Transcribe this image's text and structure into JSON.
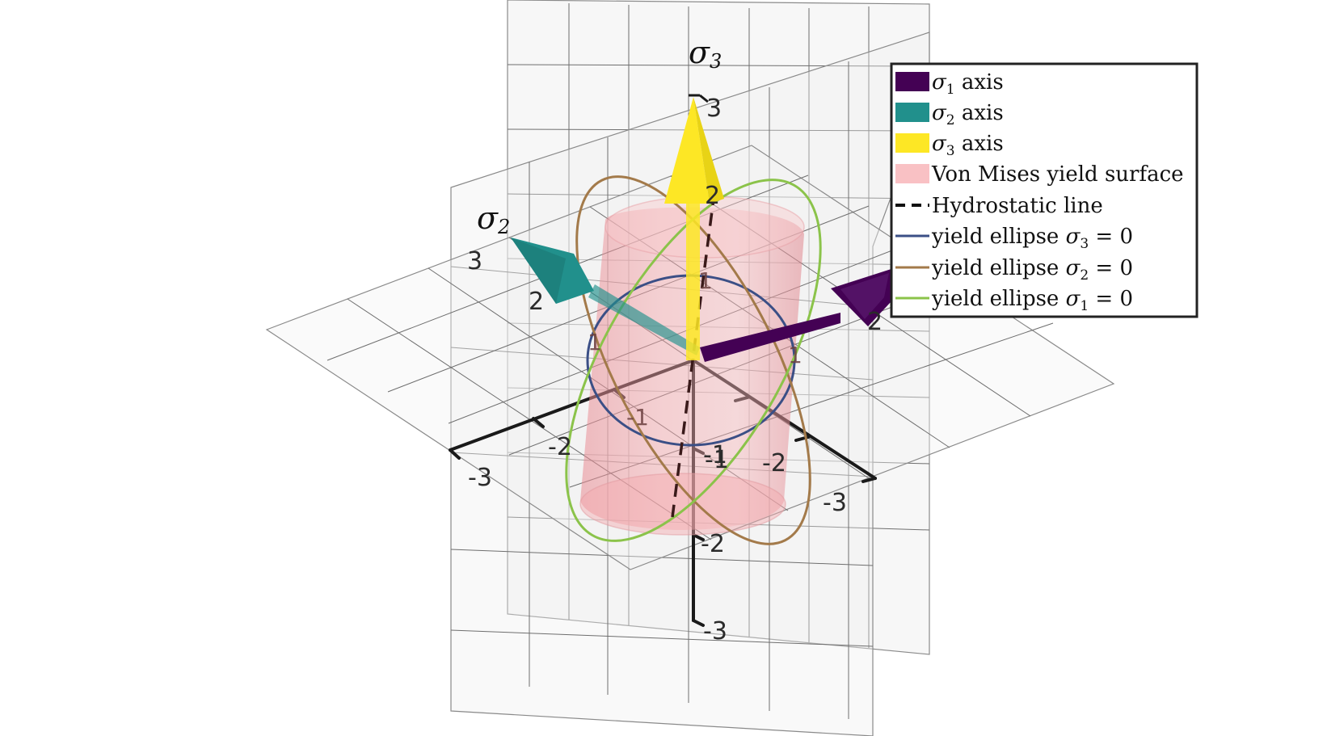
{
  "figure": {
    "axes": [
      {
        "name": "σ",
        "subscript": "1",
        "color": "#440154",
        "ticks": [
          "-3",
          "-2",
          "-1",
          "1",
          "2"
        ]
      },
      {
        "name": "σ",
        "subscript": "2",
        "color": "#21908c",
        "ticks": [
          "-3",
          "-2",
          "-1",
          "1",
          "2",
          "3"
        ]
      },
      {
        "name": "σ",
        "subscript": "3",
        "color": "#fde725",
        "ticks": [
          "-3",
          "-2",
          "-1",
          "1",
          "2",
          "3"
        ]
      }
    ],
    "colors": {
      "sigma1_axis": "#440154",
      "sigma2_axis": "#21908c",
      "sigma3_axis": "#fde725",
      "yield_surface": "#f4a3a8",
      "hydrostatic": "#111111",
      "ellipse_s3": "#3b4f86",
      "ellipse_s2": "#a37a4a",
      "ellipse_s1": "#8bc34a"
    },
    "legend": {
      "placement": "top-right",
      "entries": [
        {
          "kind": "patch",
          "color": "#440154",
          "math": "σ",
          "sub": "1",
          "text": " axis"
        },
        {
          "kind": "patch",
          "color": "#21908c",
          "math": "σ",
          "sub": "2",
          "text": " axis"
        },
        {
          "kind": "patch",
          "color": "#fde725",
          "math": "σ",
          "sub": "3",
          "text": " axis"
        },
        {
          "kind": "patch",
          "color": "#f9c1c4",
          "math": "",
          "sub": "",
          "text": "Von Mises yield surface"
        },
        {
          "kind": "dash",
          "color": "#111111",
          "math": "",
          "sub": "",
          "text": "Hydrostatic line"
        },
        {
          "kind": "line",
          "color": "#3b4f86",
          "prefix": "yield ellipse ",
          "math": "σ",
          "sub": "3",
          "text": " = 0"
        },
        {
          "kind": "line",
          "color": "#a37a4a",
          "prefix": "yield ellipse ",
          "math": "σ",
          "sub": "2",
          "text": " = 0"
        },
        {
          "kind": "line",
          "color": "#8bc34a",
          "prefix": "yield ellipse ",
          "math": "σ",
          "sub": "1",
          "text": " = 0"
        }
      ]
    }
  }
}
